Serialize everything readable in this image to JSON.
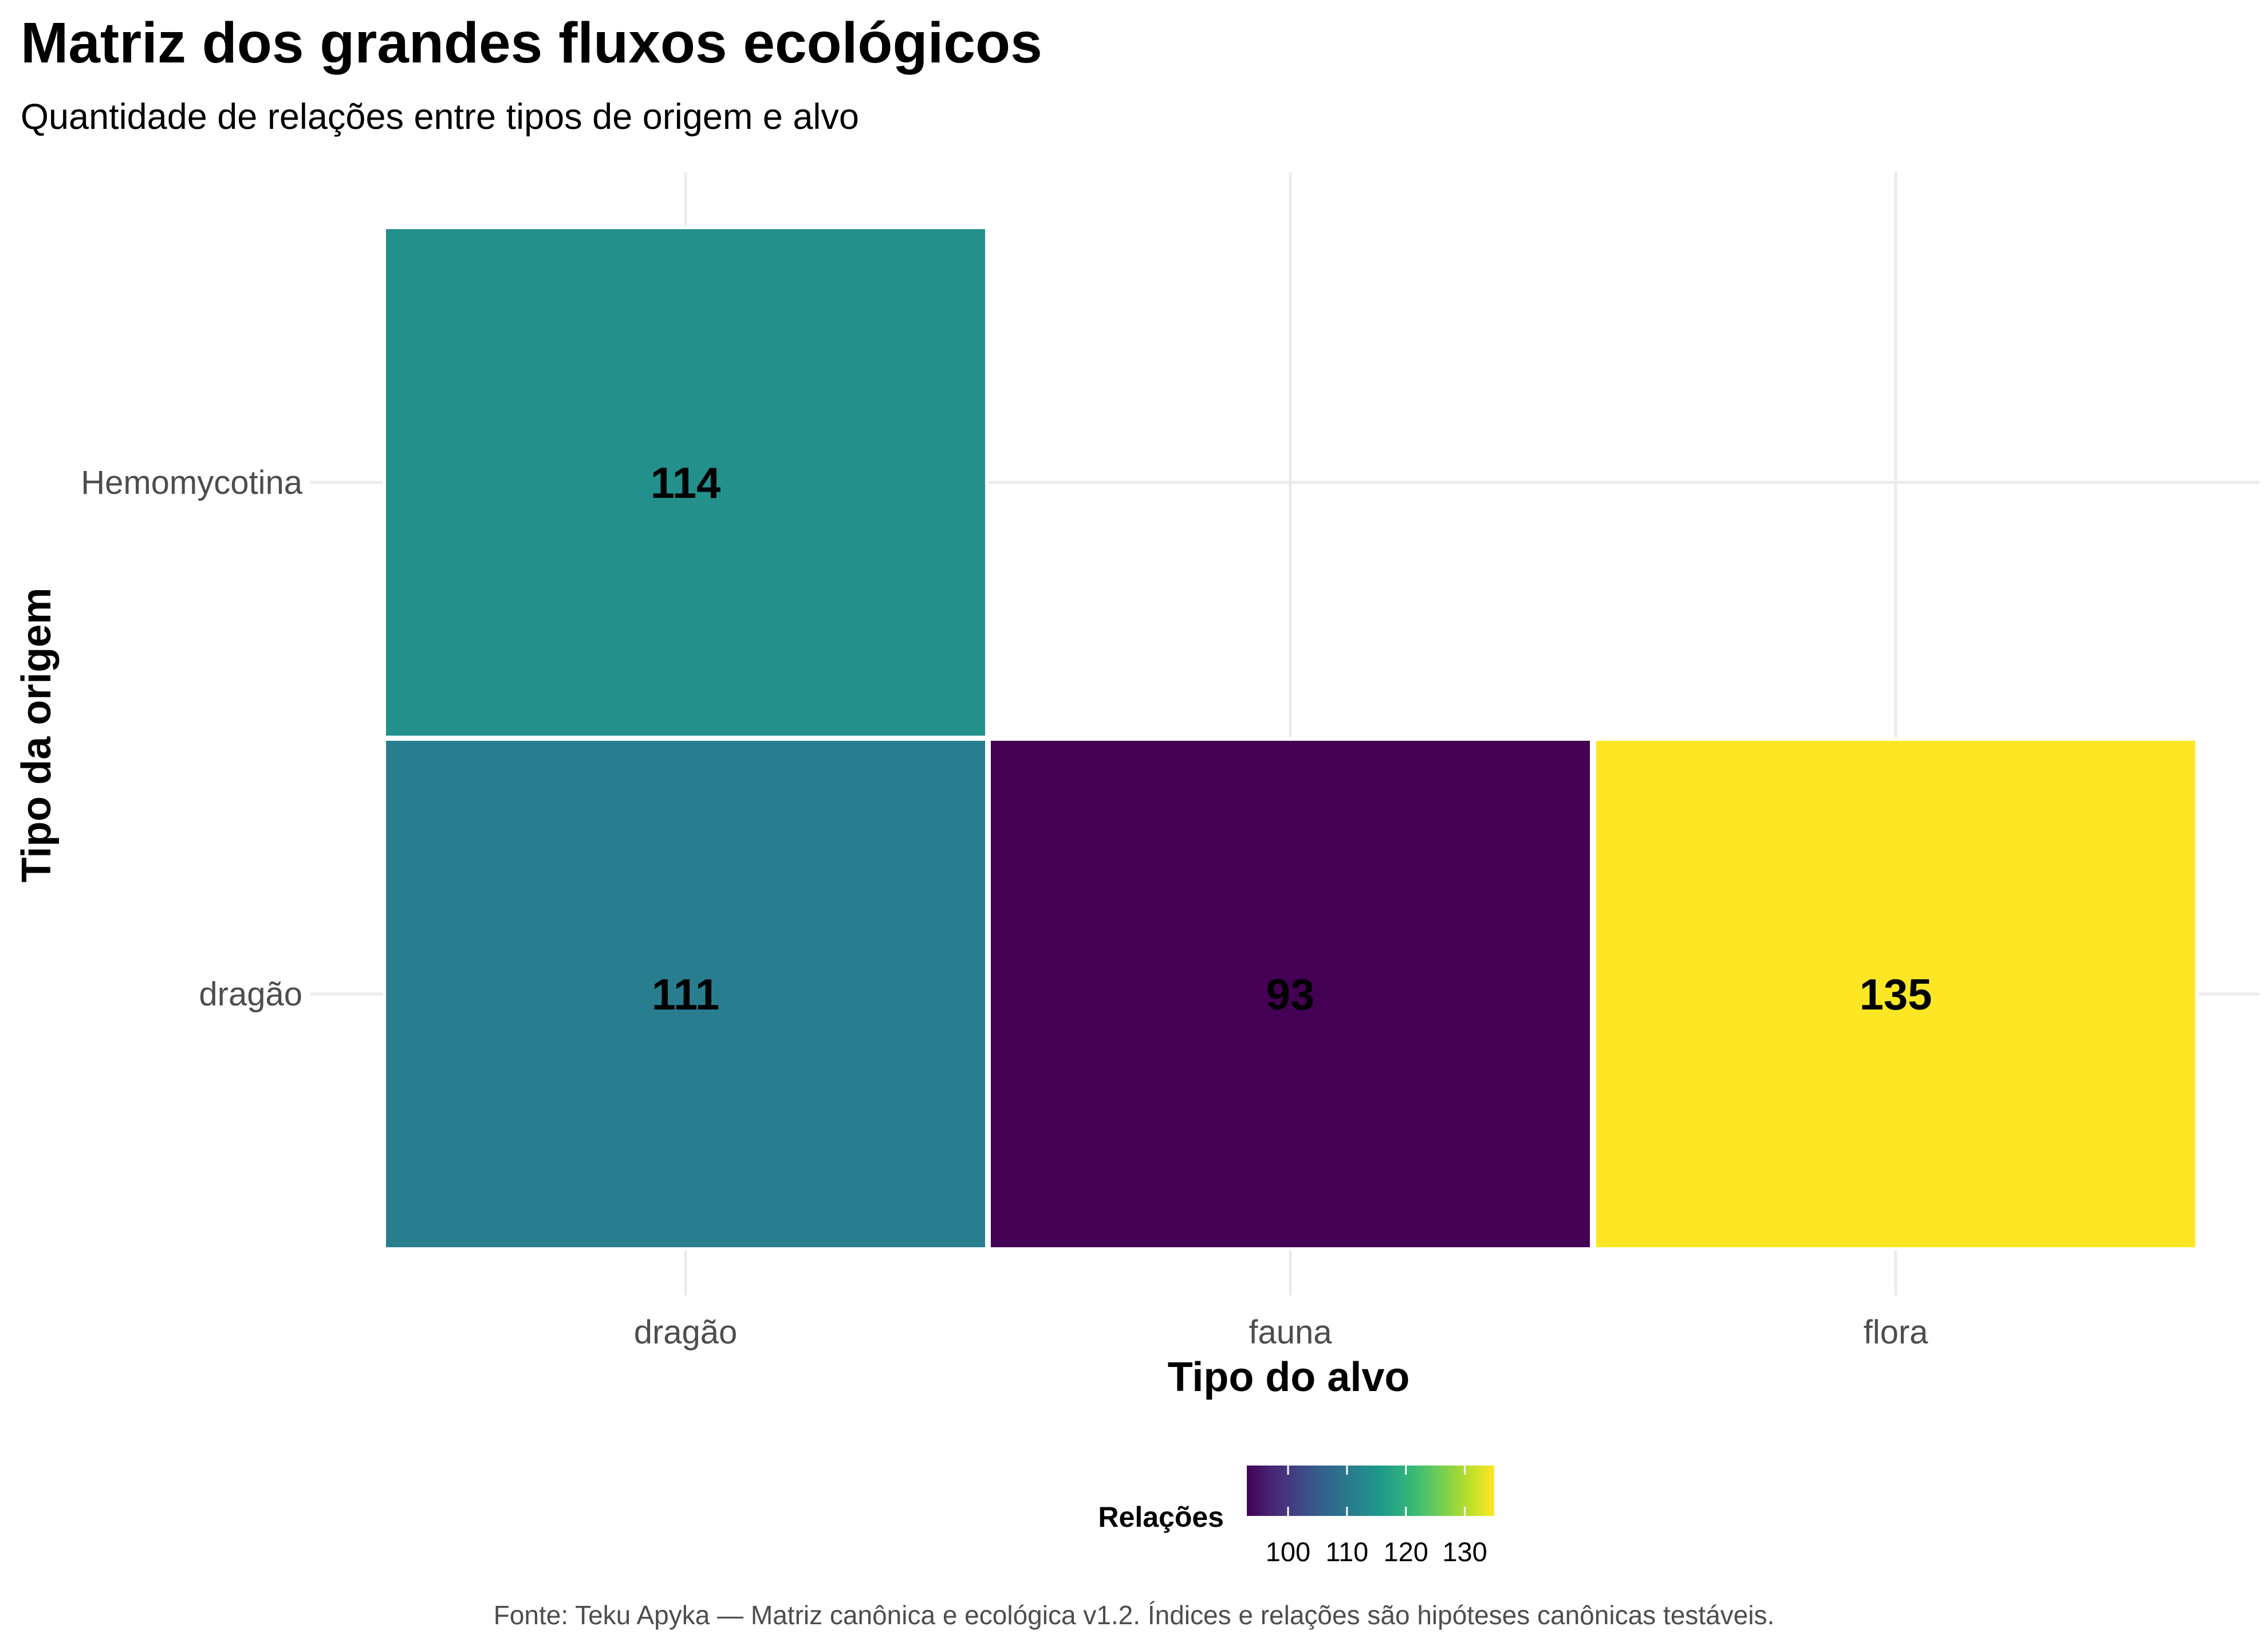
{
  "chart_data": {
    "type": "heatmap",
    "title": "Matriz dos grandes fluxos ecológicos",
    "subtitle": "Quantidade de relações entre tipos de origem e alvo",
    "xlabel": "Tipo do alvo",
    "ylabel": "Tipo da origem",
    "x_categories": [
      "dragão",
      "fauna",
      "flora"
    ],
    "y_categories": [
      "Hemomycotina",
      "dragão"
    ],
    "cells": [
      {
        "x": "dragão",
        "y": "Hemomycotina",
        "value": 114
      },
      {
        "x": "dragão",
        "y": "dragão",
        "value": 111
      },
      {
        "x": "fauna",
        "y": "dragão",
        "value": 93
      },
      {
        "x": "flora",
        "y": "dragão",
        "value": 135
      }
    ],
    "legend": {
      "title": "Relações",
      "position": "bottom",
      "ticks": [
        100,
        110,
        120,
        130
      ],
      "range": [
        93,
        135
      ],
      "colormap": "viridis"
    },
    "grid": true,
    "caption": "Fonte: Teku Apyka — Matriz canônica e ecológica v1.2. Índices e relações são hipóteses canônicas testáveis."
  },
  "colors": {
    "low": "#440154",
    "high": "#fde725",
    "grid": "#ebebeb",
    "tick_text": "#4d4d4d"
  }
}
